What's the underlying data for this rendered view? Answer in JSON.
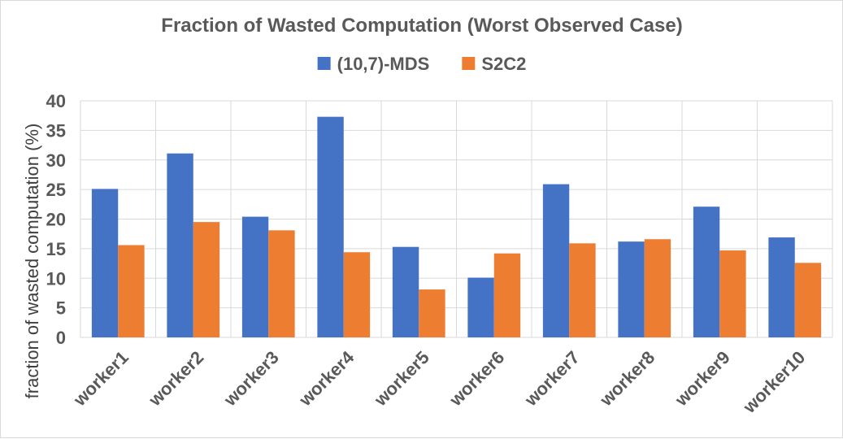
{
  "chart_data": {
    "type": "bar",
    "title": "Fraction of Wasted Computation (Worst Observed Case)",
    "ylabel": "fraction of wasted computation (%)",
    "xlabel": "",
    "categories": [
      "worker1",
      "worker2",
      "worker3",
      "worker4",
      "worker5",
      "worker6",
      "worker7",
      "worker8",
      "worker9",
      "worker10"
    ],
    "series": [
      {
        "name": "(10,7)-MDS",
        "color": "#4472C4",
        "values": [
          25.1,
          31.1,
          20.4,
          37.3,
          15.3,
          10.1,
          25.9,
          16.2,
          22.1,
          16.9
        ]
      },
      {
        "name": "S2C2",
        "color": "#ED7D31",
        "values": [
          15.6,
          19.5,
          18.1,
          14.4,
          8.1,
          14.2,
          15.9,
          16.6,
          14.7,
          12.6
        ]
      }
    ],
    "ylim": [
      0,
      40
    ],
    "yticks": [
      0,
      5,
      10,
      15,
      20,
      25,
      30,
      35,
      40
    ],
    "grid": true,
    "legend_position": "top"
  }
}
